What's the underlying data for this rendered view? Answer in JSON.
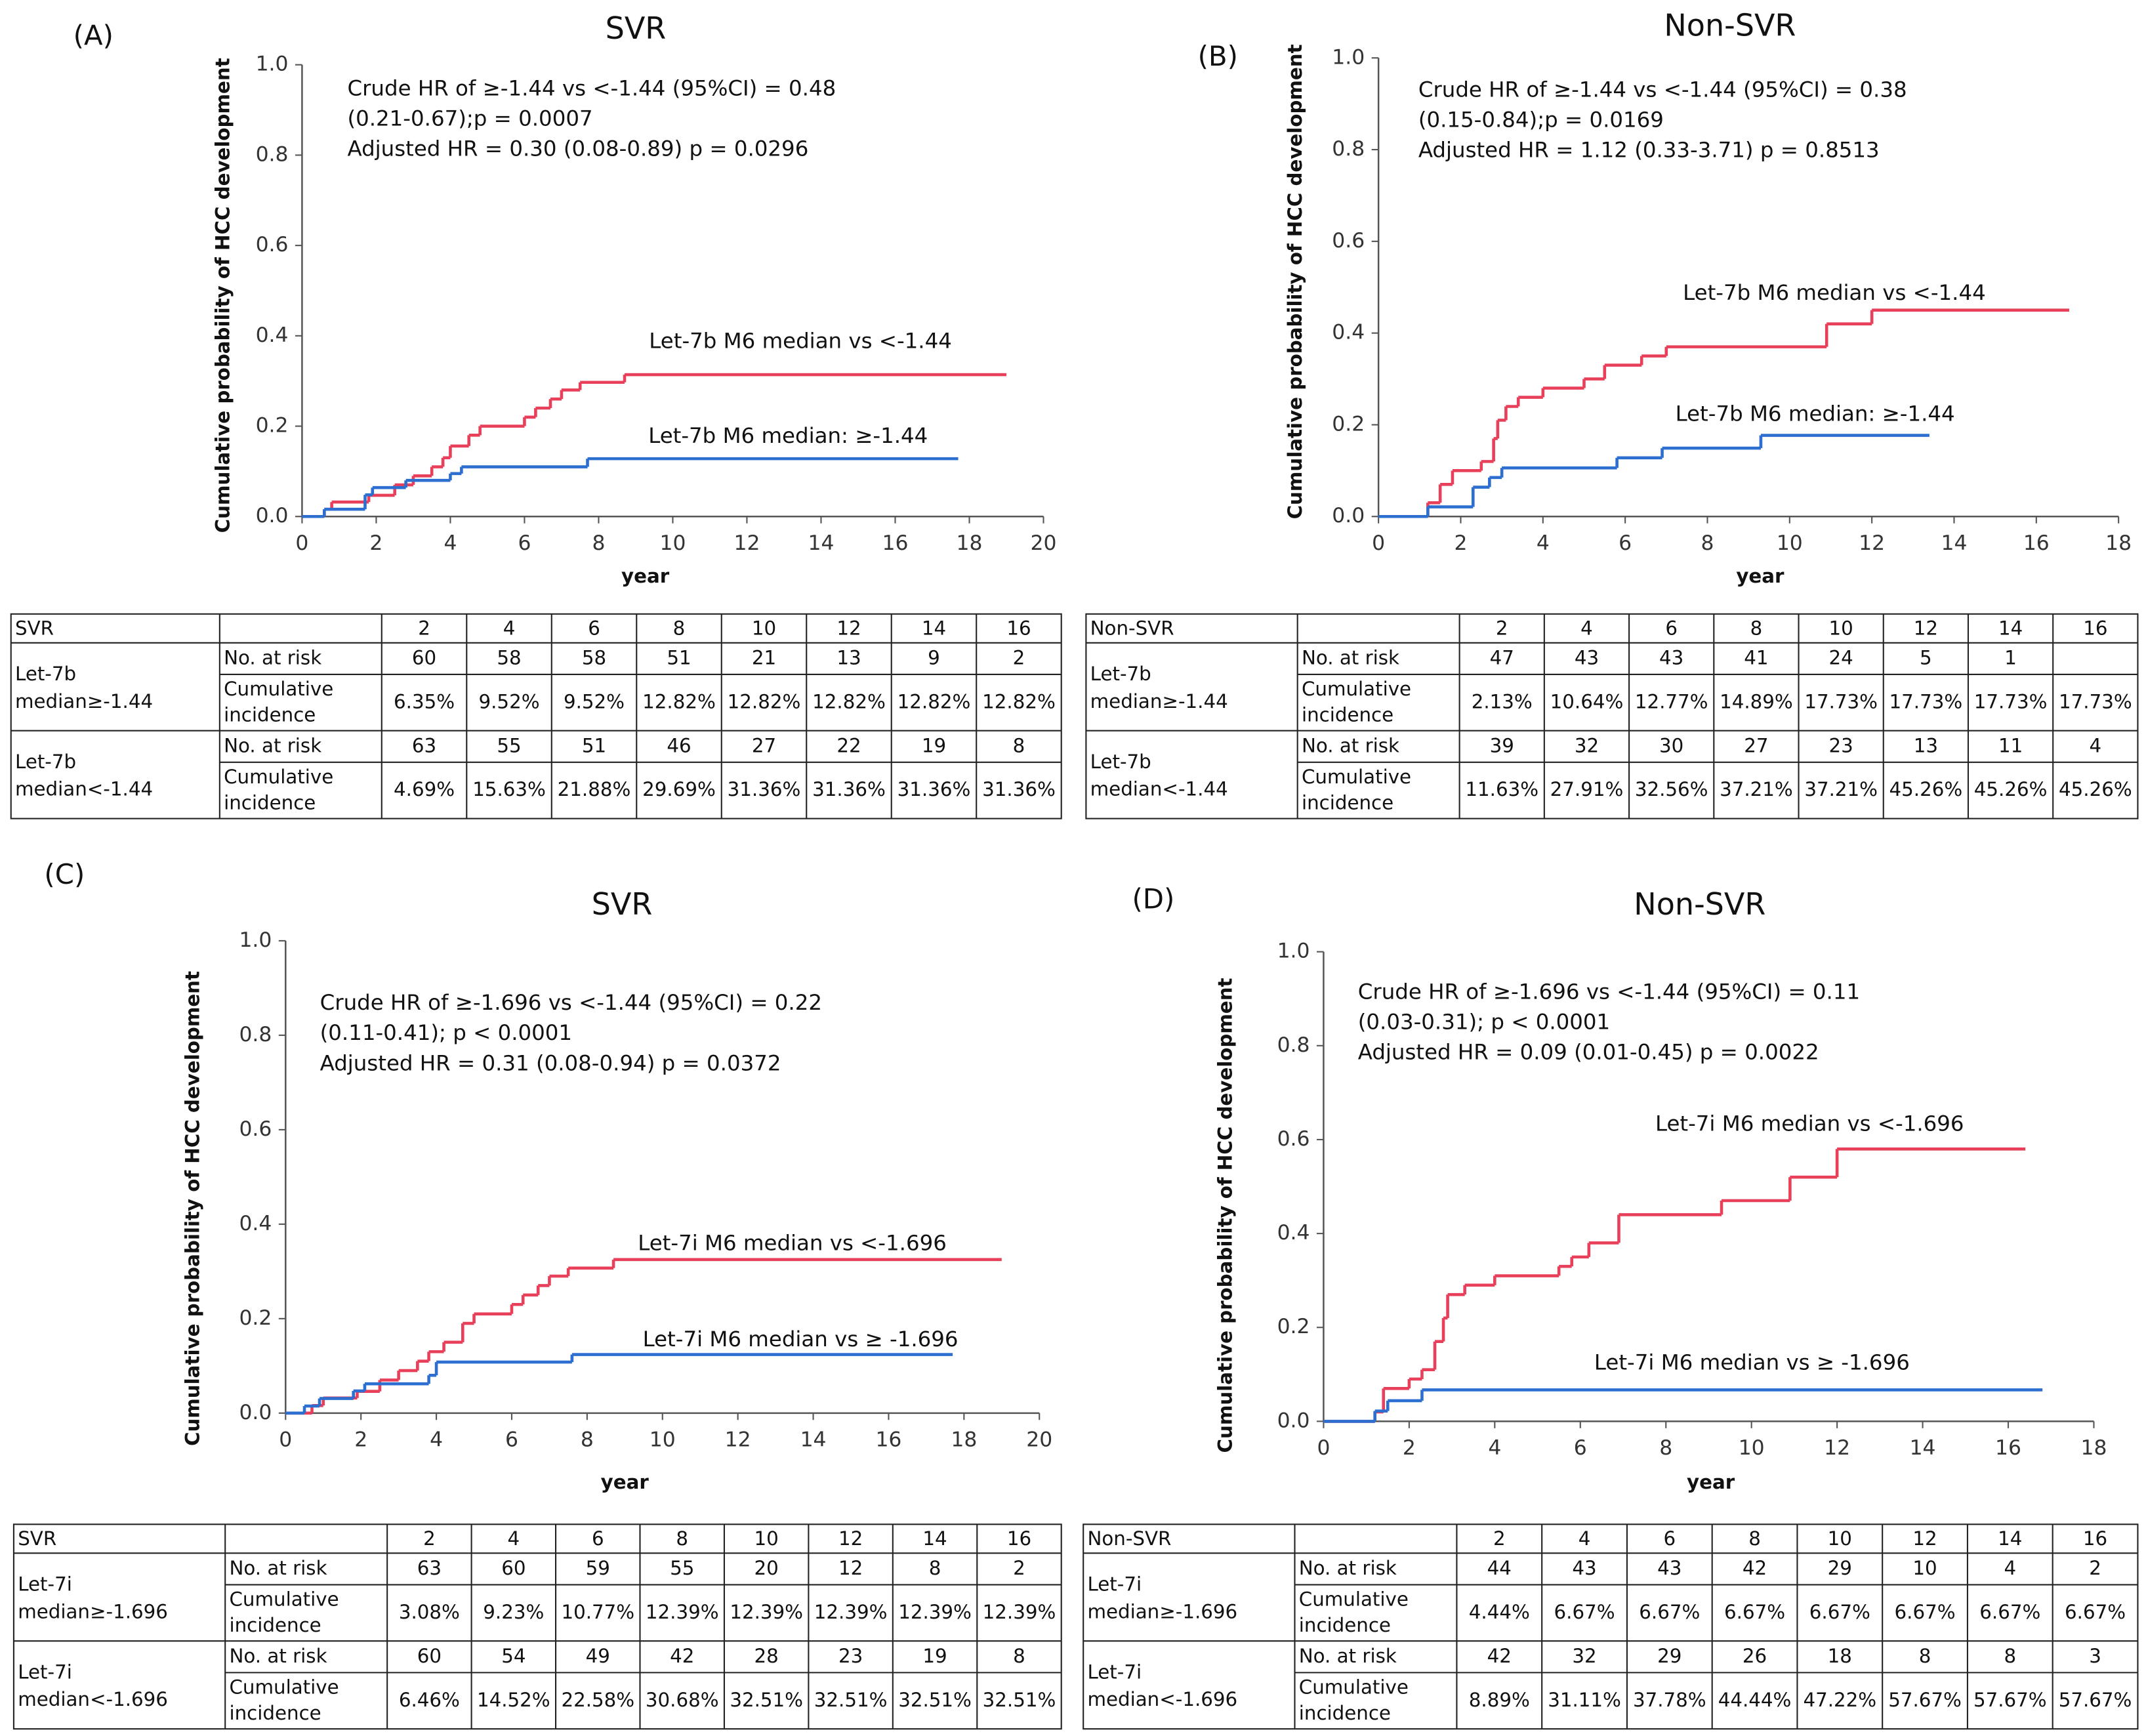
{
  "chart_data": [
    {
      "type": "step",
      "panel": "(A)",
      "title": "SVR",
      "annotations": [
        "Crude HR of ≥-1.44 vs <-1.44 (95%CI) = 0.48",
        "(0.21-0.67);p = 0.0007",
        "Adjusted HR = 0.30 (0.08-0.89)  p = 0.0296"
      ],
      "xlabel": "year",
      "ylabel": "Cumulative probability of HCC development",
      "xlim": [
        0,
        20
      ],
      "xticks": [
        0,
        2,
        4,
        6,
        8,
        10,
        12,
        14,
        16,
        18,
        20
      ],
      "ylim": [
        0,
        1
      ],
      "yticks": [
        {
          "value": 0,
          "label": "0.0"
        },
        0.2,
        0.4,
        0.6,
        0.8,
        {
          "value": 1,
          "label": "1.0"
        }
      ],
      "series": [
        {
          "name": "Let-7b M6 median vs <-1.44",
          "color": "#e8405a",
          "x": [
            0,
            0.6,
            0.8,
            1.8,
            2.5,
            3,
            3.5,
            3.8,
            4,
            4.5,
            4.8,
            6,
            6.3,
            6.7,
            7,
            7.5,
            8.7,
            19
          ],
          "values": [
            0,
            0.016,
            0.032,
            0.047,
            0.07,
            0.09,
            0.11,
            0.13,
            0.156,
            0.18,
            0.2,
            0.22,
            0.24,
            0.26,
            0.28,
            0.297,
            0.314,
            0.314
          ]
        },
        {
          "name": "Let-7b M6 median: ≥-1.44",
          "color": "#2d6fd0",
          "x": [
            0,
            0.6,
            1.7,
            1.9,
            2.8,
            4,
            4.3,
            7.7,
            17.7
          ],
          "values": [
            0,
            0.016,
            0.048,
            0.064,
            0.08,
            0.095,
            0.11,
            0.128,
            0.128
          ]
        }
      ]
    },
    {
      "type": "step",
      "panel": "(B)",
      "title": "Non-SVR",
      "annotations": [
        "Crude HR of ≥-1.44 vs <-1.44 (95%CI) = 0.38",
        "(0.15-0.84);p = 0.0169",
        "Adjusted HR = 1.12 (0.33-3.71)  p = 0.8513"
      ],
      "xlabel": "year",
      "ylabel": "Cumulative probability of HCC development",
      "xlim": [
        0,
        18
      ],
      "xticks": [
        0,
        2,
        4,
        6,
        8,
        10,
        12,
        14,
        16,
        18
      ],
      "ylim": [
        0,
        1
      ],
      "yticks": [
        {
          "value": 0,
          "label": "0.0"
        },
        0.2,
        0.4,
        0.6,
        0.8,
        {
          "value": 1,
          "label": "1.0"
        }
      ],
      "series": [
        {
          "name": "Let-7b M6 median vs <-1.44",
          "color": "#e8405a",
          "x": [
            0,
            1.2,
            1.5,
            1.8,
            2.5,
            2.8,
            2.9,
            3.1,
            3.4,
            4,
            5,
            5.5,
            6.4,
            7,
            10.9,
            12,
            16.8
          ],
          "values": [
            0,
            0.03,
            0.07,
            0.1,
            0.12,
            0.17,
            0.21,
            0.24,
            0.26,
            0.28,
            0.3,
            0.33,
            0.35,
            0.37,
            0.42,
            0.45,
            0.45
          ]
        },
        {
          "name": "Let-7b M6 median: ≥-1.44",
          "color": "#2d6fd0",
          "x": [
            0,
            1.2,
            2.3,
            2.7,
            3,
            5.8,
            6.9,
            9.3,
            13.4
          ],
          "values": [
            0,
            0.021,
            0.064,
            0.085,
            0.106,
            0.128,
            0.149,
            0.177,
            0.177
          ]
        }
      ]
    },
    {
      "type": "step",
      "panel": "(C)",
      "title": "SVR",
      "annotations": [
        "Crude HR of ≥-1.696 vs <-1.44 (95%CI) = 0.22",
        "(0.11-0.41); p < 0.0001",
        "Adjusted HR = 0.31 (0.08-0.94) p = 0.0372"
      ],
      "xlabel": "year",
      "ylabel": "Cumulative probability of HCC development",
      "xlim": [
        0,
        20
      ],
      "xticks": [
        0,
        2,
        4,
        6,
        8,
        10,
        12,
        14,
        16,
        18,
        20
      ],
      "ylim": [
        0,
        1
      ],
      "yticks": [
        {
          "value": 0,
          "label": "0.0"
        },
        0.2,
        0.4,
        0.6,
        0.8,
        {
          "value": 1,
          "label": "1.0"
        }
      ],
      "series": [
        {
          "name": "Let-7i M6 median vs <-1.696",
          "color": "#e8405a",
          "x": [
            0,
            0.7,
            1,
            1.9,
            2.5,
            3,
            3.5,
            3.8,
            4.2,
            4.7,
            5,
            6,
            6.3,
            6.7,
            7,
            7.5,
            8.7,
            19
          ],
          "values": [
            0,
            0.016,
            0.032,
            0.046,
            0.07,
            0.09,
            0.11,
            0.13,
            0.15,
            0.19,
            0.21,
            0.23,
            0.25,
            0.27,
            0.29,
            0.307,
            0.325,
            0.325
          ]
        },
        {
          "name": "Let-7i M6 median vs ≥ -1.696",
          "color": "#2d6fd0",
          "x": [
            0,
            0.5,
            0.9,
            1.8,
            2.1,
            3.8,
            4,
            7.6,
            17.7
          ],
          "values": [
            0,
            0.015,
            0.031,
            0.047,
            0.062,
            0.08,
            0.108,
            0.124,
            0.124
          ]
        }
      ]
    },
    {
      "type": "step",
      "panel": "(D)",
      "title": "Non-SVR",
      "annotations": [
        "Crude HR of ≥-1.696 vs <-1.44 (95%CI) = 0.11",
        "(0.03-0.31); p < 0.0001",
        "Adjusted HR = 0.09 (0.01-0.45) p = 0.0022"
      ],
      "xlabel": "year",
      "ylabel": "Cumulative probability of HCC development",
      "xlim": [
        0,
        18
      ],
      "xticks": [
        0,
        2,
        4,
        6,
        8,
        10,
        12,
        14,
        16,
        18
      ],
      "ylim": [
        0,
        1
      ],
      "yticks": [
        {
          "value": 0,
          "label": "0.0"
        },
        0.2,
        0.4,
        0.6,
        0.8,
        {
          "value": 1,
          "label": "1.0"
        }
      ],
      "series": [
        {
          "name": "Let-7i M6 median vs <-1.696",
          "color": "#e8405a",
          "x": [
            0,
            1.2,
            1.4,
            2,
            2.3,
            2.6,
            2.8,
            2.9,
            3.3,
            4,
            5.5,
            5.8,
            6.2,
            6.9,
            9.3,
            10.9,
            12,
            16.4
          ],
          "values": [
            0,
            0.02,
            0.07,
            0.09,
            0.11,
            0.17,
            0.22,
            0.27,
            0.29,
            0.31,
            0.33,
            0.35,
            0.38,
            0.44,
            0.47,
            0.52,
            0.58,
            0.58
          ]
        },
        {
          "name": "Let-7i M6 median vs ≥ -1.696",
          "color": "#2d6fd0",
          "x": [
            0,
            1.2,
            1.5,
            2.3,
            16.8
          ],
          "values": [
            0,
            0.022,
            0.044,
            0.067,
            0.067
          ]
        }
      ]
    }
  ],
  "tables": [
    {
      "title": "SVR",
      "times": [
        "2",
        "4",
        "6",
        "8",
        "10",
        "12",
        "14",
        "16"
      ],
      "groups": [
        {
          "name": "Let-7b median≥-1.44",
          "rows": [
            {
              "label": "No. at risk",
              "cells": [
                "60",
                "58",
                "58",
                "51",
                "21",
                "13",
                "9",
                "2"
              ]
            },
            {
              "label": "Cumulative incidence",
              "cells": [
                "6.35%",
                "9.52%",
                "9.52%",
                "12.82%",
                "12.82%",
                "12.82%",
                "12.82%",
                "12.82%"
              ]
            }
          ]
        },
        {
          "name": "Let-7b median<-1.44",
          "rows": [
            {
              "label": "No. at risk",
              "cells": [
                "63",
                "55",
                "51",
                "46",
                "27",
                "22",
                "19",
                "8"
              ]
            },
            {
              "label": "Cumulative incidence",
              "cells": [
                "4.69%",
                "15.63%",
                "21.88%",
                "29.69%",
                "31.36%",
                "31.36%",
                "31.36%",
                "31.36%"
              ]
            }
          ]
        }
      ]
    },
    {
      "title": "Non-SVR",
      "times": [
        "2",
        "4",
        "6",
        "8",
        "10",
        "12",
        "14",
        "16"
      ],
      "groups": [
        {
          "name": "Let-7b median≥-1.44",
          "rows": [
            {
              "label": "No. at risk",
              "cells": [
                "47",
                "43",
                "43",
                "41",
                "24",
                "5",
                "1",
                null
              ]
            },
            {
              "label": "Cumulative incidence",
              "cells": [
                "2.13%",
                "10.64%",
                "12.77%",
                "14.89%",
                "17.73%",
                "17.73%",
                "17.73%",
                "17.73%"
              ]
            }
          ]
        },
        {
          "name": "Let-7b median<-1.44",
          "rows": [
            {
              "label": "No. at risk",
              "cells": [
                "39",
                "32",
                "30",
                "27",
                "23",
                "13",
                "11",
                "4"
              ]
            },
            {
              "label": "Cumulative incidence",
              "cells": [
                "11.63%",
                "27.91%",
                "32.56%",
                "37.21%",
                "37.21%",
                "45.26%",
                "45.26%",
                "45.26%"
              ]
            }
          ]
        }
      ]
    },
    {
      "title": "SVR",
      "times": [
        "2",
        "4",
        "6",
        "8",
        "10",
        "12",
        "14",
        "16"
      ],
      "groups": [
        {
          "name": "Let-7i median≥-1.696",
          "rows": [
            {
              "label": "No. at risk",
              "cells": [
                "63",
                "60",
                "59",
                "55",
                "20",
                "12",
                "8",
                "2"
              ]
            },
            {
              "label": "Cumulative incidence",
              "cells": [
                "3.08%",
                "9.23%",
                "10.77%",
                "12.39%",
                "12.39%",
                "12.39%",
                "12.39%",
                "12.39%"
              ]
            }
          ]
        },
        {
          "name": "Let-7i median<-1.696",
          "rows": [
            {
              "label": "No. at risk",
              "cells": [
                "60",
                "54",
                "49",
                "42",
                "28",
                "23",
                "19",
                "8"
              ]
            },
            {
              "label": "Cumulative incidence",
              "cells": [
                "6.46%",
                "14.52%",
                "22.58%",
                "30.68%",
                "32.51%",
                "32.51%",
                "32.51%",
                "32.51%"
              ]
            }
          ]
        }
      ]
    },
    {
      "title": "Non-SVR",
      "times": [
        "2",
        "4",
        "6",
        "8",
        "10",
        "12",
        "14",
        "16"
      ],
      "groups": [
        {
          "name": "Let-7i median≥-1.696",
          "rows": [
            {
              "label": "No. at risk",
              "cells": [
                "44",
                "43",
                "43",
                "42",
                "29",
                "10",
                "4",
                "2"
              ]
            },
            {
              "label": "Cumulative incidence",
              "cells": [
                "4.44%",
                "6.67%",
                "6.67%",
                "6.67%",
                "6.67%",
                "6.67%",
                "6.67%",
                "6.67%"
              ]
            }
          ]
        },
        {
          "name": "Let-7i median<-1.696",
          "rows": [
            {
              "label": "No. at risk",
              "cells": [
                "42",
                "32",
                "29",
                "26",
                "18",
                "8",
                "8",
                "3"
              ]
            },
            {
              "label": "Cumulative incidence",
              "cells": [
                "8.89%",
                "31.11%",
                "37.78%",
                "44.44%",
                "47.22%",
                "57.67%",
                "57.67%",
                "57.67%"
              ]
            }
          ]
        }
      ]
    }
  ]
}
